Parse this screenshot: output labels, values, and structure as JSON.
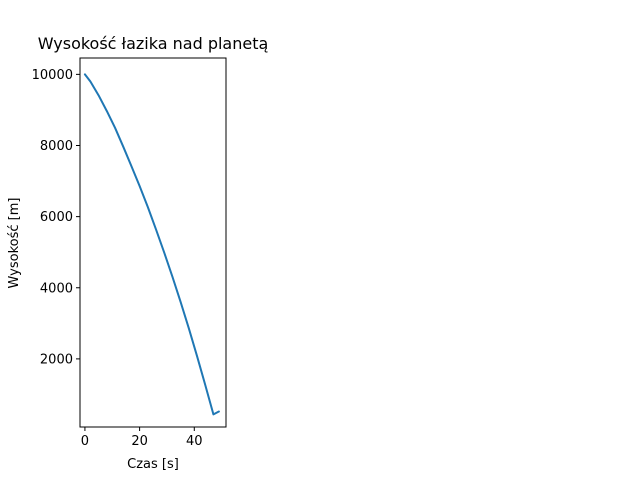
{
  "chart_data": {
    "type": "line",
    "title": "Wysokość łazika nad planetą",
    "xlabel": "Czas [s]",
    "ylabel": "Wysokość [m]",
    "xlim": [
      -1.8,
      51.6
    ],
    "ylim": [
      85,
      10460
    ],
    "xticks": [
      0,
      20,
      40
    ],
    "yticks": [
      2000,
      4000,
      6000,
      8000,
      10000
    ],
    "grid": false,
    "series": [
      {
        "name": "",
        "color": "#1f77b4",
        "x": [
          0,
          2,
          5,
          8,
          11,
          14,
          17,
          20,
          23,
          26,
          29,
          32,
          35,
          38,
          41,
          44,
          47,
          49
        ],
        "y": [
          10000,
          9800,
          9410,
          8970,
          8500,
          7970,
          7420,
          6860,
          6270,
          5640,
          4990,
          4310,
          3600,
          2860,
          2080,
          1270,
          440,
          520
        ]
      }
    ]
  }
}
